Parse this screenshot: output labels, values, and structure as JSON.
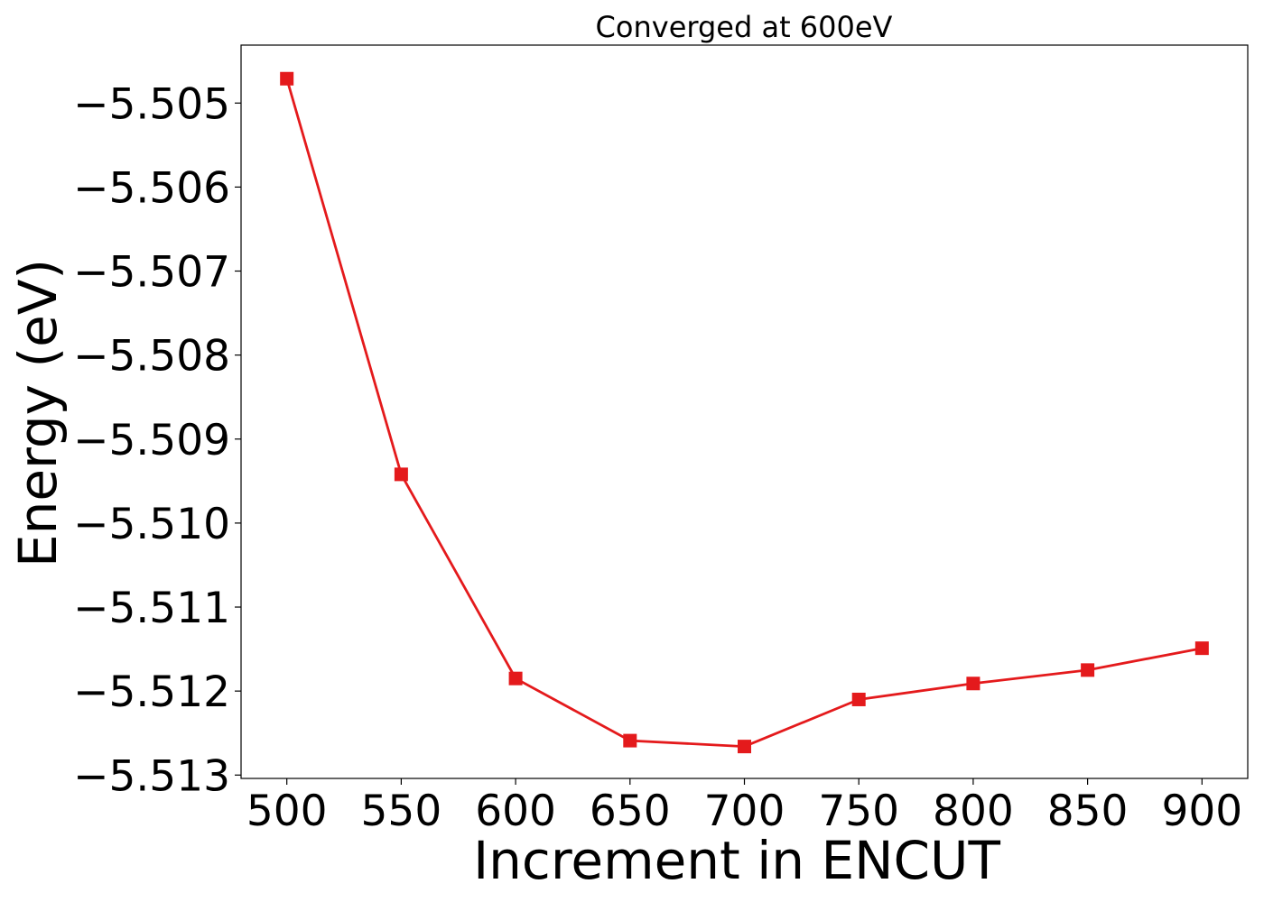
{
  "chart_data": {
    "type": "line",
    "title": "Converged at 600eV",
    "xlabel": "Increment in ENCUT",
    "ylabel": "Energy (eV)",
    "x": [
      500,
      550,
      600,
      650,
      700,
      750,
      800,
      850,
      900
    ],
    "series": [
      {
        "values": [
          -5.50471,
          -5.50942,
          -5.51185,
          -5.51259,
          -5.51266,
          -5.5121,
          -5.51191,
          -5.51175,
          -5.51149
        ],
        "color": "#e41a1c",
        "marker": "square"
      }
    ],
    "xticks": [
      500,
      550,
      600,
      650,
      700,
      750,
      800,
      850,
      900
    ],
    "xtick_labels": [
      "500",
      "550",
      "600",
      "650",
      "700",
      "750",
      "800",
      "850",
      "900"
    ],
    "yticks": [
      -5.505,
      -5.506,
      -5.507,
      -5.508,
      -5.509,
      -5.51,
      -5.511,
      -5.512,
      -5.513
    ],
    "ytick_labels": [
      "−5.505",
      "−5.506",
      "−5.507",
      "−5.508",
      "−5.509",
      "−5.510",
      "−5.511",
      "−5.512",
      "−5.513"
    ],
    "xlim": [
      480,
      920
    ],
    "ylim": [
      -5.51304,
      -5.50431
    ],
    "grid": false,
    "legend": "none"
  }
}
